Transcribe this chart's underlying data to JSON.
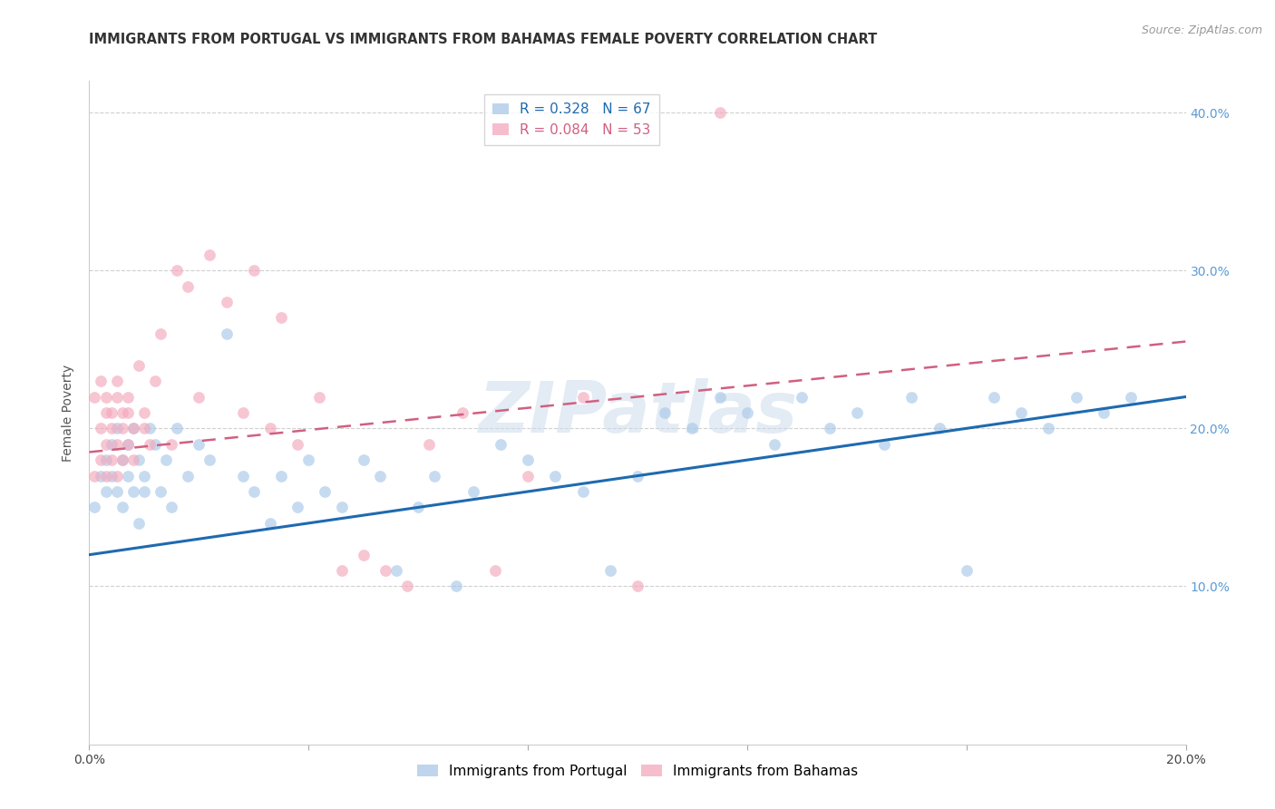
{
  "title": "IMMIGRANTS FROM PORTUGAL VS IMMIGRANTS FROM BAHAMAS FEMALE POVERTY CORRELATION CHART",
  "source": "Source: ZipAtlas.com",
  "ylabel": "Female Poverty",
  "xlim": [
    0.0,
    0.2
  ],
  "ylim": [
    0.0,
    0.42
  ],
  "yticks": [
    0.0,
    0.1,
    0.2,
    0.3,
    0.4
  ],
  "ytick_labels": [
    "",
    "10.0%",
    "20.0%",
    "30.0%",
    "40.0%"
  ],
  "xticks": [
    0.0,
    0.04,
    0.08,
    0.12,
    0.16,
    0.2
  ],
  "xtick_labels": [
    "0.0%",
    "",
    "",
    "",
    "",
    "20.0%"
  ],
  "blue_color": "#a8c8e8",
  "pink_color": "#f4a8bc",
  "blue_line_color": "#1e6ab0",
  "pink_line_color": "#d06080",
  "portugal_R": 0.328,
  "portugal_N": 67,
  "bahamas_R": 0.084,
  "bahamas_N": 53,
  "blue_trend_x0": 0.0,
  "blue_trend_y0": 0.12,
  "blue_trend_x1": 0.2,
  "blue_trend_y1": 0.22,
  "pink_trend_x0": 0.0,
  "pink_trend_y0": 0.185,
  "pink_trend_x1": 0.2,
  "pink_trend_y1": 0.255,
  "portugal_x": [
    0.001,
    0.002,
    0.003,
    0.003,
    0.004,
    0.004,
    0.005,
    0.005,
    0.006,
    0.006,
    0.007,
    0.007,
    0.008,
    0.008,
    0.009,
    0.009,
    0.01,
    0.01,
    0.011,
    0.012,
    0.013,
    0.014,
    0.015,
    0.016,
    0.018,
    0.02,
    0.022,
    0.025,
    0.028,
    0.03,
    0.033,
    0.035,
    0.038,
    0.04,
    0.043,
    0.046,
    0.05,
    0.053,
    0.056,
    0.06,
    0.063,
    0.067,
    0.07,
    0.075,
    0.08,
    0.085,
    0.09,
    0.095,
    0.1,
    0.105,
    0.11,
    0.115,
    0.12,
    0.125,
    0.13,
    0.135,
    0.14,
    0.145,
    0.15,
    0.155,
    0.16,
    0.165,
    0.17,
    0.175,
    0.18,
    0.185,
    0.19
  ],
  "portugal_y": [
    0.15,
    0.17,
    0.18,
    0.16,
    0.19,
    0.17,
    0.16,
    0.2,
    0.18,
    0.15,
    0.19,
    0.17,
    0.16,
    0.2,
    0.14,
    0.18,
    0.17,
    0.16,
    0.2,
    0.19,
    0.16,
    0.18,
    0.15,
    0.2,
    0.17,
    0.19,
    0.18,
    0.26,
    0.17,
    0.16,
    0.14,
    0.17,
    0.15,
    0.18,
    0.16,
    0.15,
    0.18,
    0.17,
    0.11,
    0.15,
    0.17,
    0.1,
    0.16,
    0.19,
    0.18,
    0.17,
    0.16,
    0.11,
    0.17,
    0.21,
    0.2,
    0.22,
    0.21,
    0.19,
    0.22,
    0.2,
    0.21,
    0.19,
    0.22,
    0.2,
    0.11,
    0.22,
    0.21,
    0.2,
    0.22,
    0.21,
    0.22
  ],
  "bahamas_x": [
    0.001,
    0.001,
    0.002,
    0.002,
    0.002,
    0.003,
    0.003,
    0.003,
    0.003,
    0.004,
    0.004,
    0.004,
    0.005,
    0.005,
    0.005,
    0.005,
    0.006,
    0.006,
    0.006,
    0.007,
    0.007,
    0.007,
    0.008,
    0.008,
    0.009,
    0.01,
    0.01,
    0.011,
    0.012,
    0.013,
    0.015,
    0.016,
    0.018,
    0.02,
    0.022,
    0.025,
    0.028,
    0.03,
    0.033,
    0.035,
    0.038,
    0.042,
    0.046,
    0.05,
    0.054,
    0.058,
    0.062,
    0.068,
    0.074,
    0.08,
    0.09,
    0.1,
    0.115
  ],
  "bahamas_y": [
    0.17,
    0.22,
    0.18,
    0.2,
    0.23,
    0.17,
    0.19,
    0.21,
    0.22,
    0.18,
    0.2,
    0.21,
    0.17,
    0.19,
    0.22,
    0.23,
    0.18,
    0.21,
    0.2,
    0.19,
    0.22,
    0.21,
    0.2,
    0.18,
    0.24,
    0.2,
    0.21,
    0.19,
    0.23,
    0.26,
    0.19,
    0.3,
    0.29,
    0.22,
    0.31,
    0.28,
    0.21,
    0.3,
    0.2,
    0.27,
    0.19,
    0.22,
    0.11,
    0.12,
    0.11,
    0.1,
    0.19,
    0.21,
    0.11,
    0.17,
    0.22,
    0.1,
    0.4
  ],
  "title_fontsize": 10.5,
  "axis_label_fontsize": 10,
  "tick_fontsize": 10,
  "legend_fontsize": 11,
  "source_fontsize": 9
}
